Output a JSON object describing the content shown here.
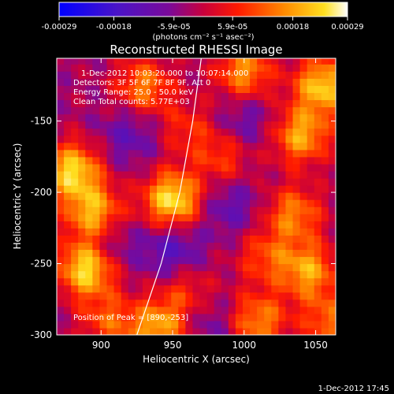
{
  "chart_data": {
    "type": "heatmap",
    "title": "Reconstructed RHESSI Image",
    "xlabel": "Heliocentric X (arcsec)",
    "ylabel": "Heliocentric Y (arcsec)",
    "x_ticks": [
      "900",
      "950",
      "1000",
      "1050"
    ],
    "x_tick_values": [
      900,
      950,
      1000,
      1050
    ],
    "xlim": [
      869,
      1064
    ],
    "y_ticks": [
      "-150",
      "-200",
      "-250",
      "-300"
    ],
    "y_tick_values": [
      -150,
      -200,
      -250,
      -300
    ],
    "ylim": [
      -300,
      -106
    ],
    "colorbar": {
      "ticks": [
        "-0.00029",
        "-0.00018",
        "-5.9e-05",
        "5.9e-05",
        "0.00018",
        "0.00029"
      ],
      "tick_values": [
        -0.00029,
        -0.00018,
        -5.9e-05,
        5.9e-05,
        0.00018,
        0.00029
      ],
      "range": [
        -0.00029,
        0.00029
      ],
      "units": "(photons cm⁻² s⁻¹ asec⁻²)",
      "colormap": "rainbow: blue-violet-red-orange-yellow-white"
    },
    "annotations": [
      "1-Dec-2012 10:03:20.000 to 10:07:14.000",
      "Detectors: 3F 5F 6F 7F 8F 9F, Att 0",
      "Energy Range: 25.0 - 50.0 keV",
      "Clean    Total counts: 5.77E+03"
    ],
    "peak_label": "Position of Peak = [890,-253]",
    "peak": {
      "x": 890,
      "y": -253
    },
    "limb_curve": {
      "description": "solar limb line",
      "points": [
        [
          925,
          -300
        ],
        [
          942,
          -250
        ],
        [
          955,
          -200
        ],
        [
          964,
          -150
        ],
        [
          970,
          -106
        ]
      ]
    },
    "hotspots": [
      {
        "x": 950,
        "y": -205,
        "intensity": 0.00029
      },
      {
        "x": 890,
        "y": -253,
        "intensity": 0.00029
      },
      {
        "x": 880,
        "y": -185,
        "intensity": 0.00027
      },
      {
        "x": 895,
        "y": -215,
        "intensity": 0.00024
      },
      {
        "x": 1055,
        "y": -125,
        "intensity": 0.00026
      },
      {
        "x": 1040,
        "y": -160,
        "intensity": 0.00022
      },
      {
        "x": 1000,
        "y": -115,
        "intensity": 0.0002
      },
      {
        "x": 930,
        "y": -125,
        "intensity": 0.00018
      },
      {
        "x": 1045,
        "y": -255,
        "intensity": 0.00021
      },
      {
        "x": 1035,
        "y": -215,
        "intensity": 0.00018
      },
      {
        "x": 1010,
        "y": -290,
        "intensity": 0.00019
      },
      {
        "x": 940,
        "y": -295,
        "intensity": 0.00022
      },
      {
        "x": 985,
        "y": -175,
        "intensity": 0.00012
      },
      {
        "x": 960,
        "y": -270,
        "intensity": 0.00011
      },
      {
        "x": 1015,
        "y": -245,
        "intensity": 0.00013
      },
      {
        "x": 905,
        "y": -290,
        "intensity": 0.00014
      },
      {
        "x": 1060,
        "y": -290,
        "intensity": 0.00016
      },
      {
        "x": 960,
        "y": -155,
        "intensity": 0.0001
      }
    ],
    "coldspots": [
      {
        "x": 950,
        "y": -240,
        "intensity": -0.00012
      },
      {
        "x": 905,
        "y": -235,
        "intensity": -0.0001
      },
      {
        "x": 990,
        "y": -210,
        "intensity": -9e-05
      },
      {
        "x": 1000,
        "y": -150,
        "intensity": -8e-05
      },
      {
        "x": 920,
        "y": -160,
        "intensity": -9e-05
      },
      {
        "x": 975,
        "y": -290,
        "intensity": -7e-05
      }
    ]
  },
  "footer_timestamp": "1-Dec-2012 17:45"
}
